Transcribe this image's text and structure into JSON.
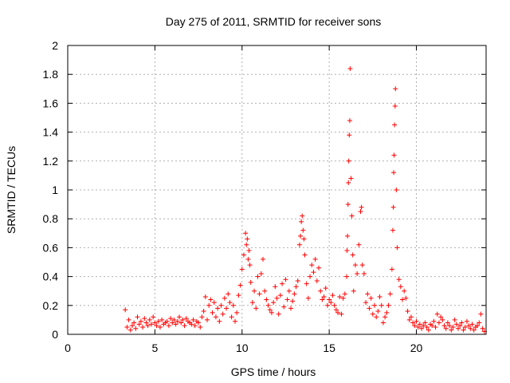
{
  "chart_data": {
    "type": "scatter",
    "title": "Day 275 of 2011, SRMTID for receiver sons",
    "xlabel": "GPS time / hours",
    "ylabel": "SRMTID / TECUs",
    "xlim": [
      0,
      24
    ],
    "ylim": [
      0,
      2
    ],
    "xticks": [
      "0",
      "5",
      "10",
      "15",
      "20"
    ],
    "yticks": [
      "0",
      "0.2",
      "0.4",
      "0.6",
      "0.8",
      "1",
      "1.2",
      "1.4",
      "1.6",
      "1.8",
      "2"
    ],
    "grid": true,
    "marker": "+",
    "color": "#ff0000",
    "series": [
      {
        "name": "SRMTID",
        "x": [
          3.3,
          3.4,
          3.5,
          3.6,
          3.7,
          3.8,
          3.9,
          4.0,
          4.1,
          4.2,
          4.3,
          4.4,
          4.5,
          4.6,
          4.7,
          4.8,
          4.9,
          5.0,
          5.1,
          5.2,
          5.3,
          5.4,
          5.5,
          5.6,
          5.7,
          5.8,
          5.9,
          6.0,
          6.1,
          6.2,
          6.3,
          6.4,
          6.5,
          6.6,
          6.7,
          6.8,
          6.9,
          7.0,
          7.1,
          7.2,
          7.3,
          7.4,
          7.5,
          7.6,
          7.7,
          7.8,
          7.9,
          8.0,
          8.1,
          8.2,
          8.3,
          8.4,
          8.5,
          8.6,
          8.7,
          8.8,
          8.9,
          9.0,
          9.1,
          9.2,
          9.3,
          9.4,
          9.5,
          9.6,
          9.7,
          9.8,
          9.9,
          10.0,
          10.1,
          10.2,
          10.25,
          10.3,
          10.35,
          10.4,
          10.45,
          10.5,
          10.6,
          10.7,
          10.8,
          10.9,
          11.0,
          11.1,
          11.2,
          11.3,
          11.4,
          11.5,
          11.6,
          11.7,
          11.8,
          11.9,
          12.0,
          12.1,
          12.2,
          12.3,
          12.4,
          12.5,
          12.6,
          12.7,
          12.8,
          12.9,
          13.0,
          13.1,
          13.2,
          13.3,
          13.35,
          13.4,
          13.45,
          13.5,
          13.55,
          13.6,
          13.7,
          13.8,
          13.9,
          14.0,
          14.1,
          14.2,
          14.3,
          14.4,
          14.5,
          14.6,
          14.7,
          14.8,
          14.9,
          15.0,
          15.1,
          15.2,
          15.3,
          15.4,
          15.5,
          15.6,
          15.7,
          15.8,
          15.9,
          16.0,
          16.02,
          16.05,
          16.08,
          16.1,
          16.12,
          16.15,
          16.18,
          16.2,
          16.25,
          16.3,
          16.35,
          16.4,
          16.5,
          16.6,
          16.7,
          16.8,
          16.85,
          16.9,
          17.0,
          17.1,
          17.2,
          17.3,
          17.4,
          17.5,
          17.6,
          17.7,
          17.8,
          17.9,
          18.0,
          18.1,
          18.2,
          18.3,
          18.4,
          18.5,
          18.6,
          18.65,
          18.68,
          18.7,
          18.72,
          18.75,
          18.78,
          18.8,
          18.85,
          18.9,
          19.0,
          19.1,
          19.2,
          19.3,
          19.4,
          19.5,
          19.6,
          19.7,
          19.8,
          19.9,
          20.0,
          20.1,
          20.2,
          20.3,
          20.4,
          20.5,
          20.6,
          20.7,
          20.8,
          20.9,
          21.0,
          21.1,
          21.2,
          21.3,
          21.4,
          21.5,
          21.6,
          21.7,
          21.8,
          21.9,
          22.0,
          22.1,
          22.2,
          22.3,
          22.4,
          22.5,
          22.6,
          22.7,
          22.8,
          22.9,
          23.0,
          23.1,
          23.2,
          23.3,
          23.4,
          23.5,
          23.6,
          23.7,
          23.8,
          23.9
        ],
        "y": [
          0.17,
          0.05,
          0.1,
          0.03,
          0.06,
          0.08,
          0.04,
          0.12,
          0.07,
          0.09,
          0.05,
          0.11,
          0.08,
          0.06,
          0.1,
          0.07,
          0.12,
          0.08,
          0.06,
          0.09,
          0.05,
          0.1,
          0.07,
          0.08,
          0.09,
          0.06,
          0.11,
          0.08,
          0.1,
          0.07,
          0.09,
          0.12,
          0.08,
          0.1,
          0.06,
          0.11,
          0.09,
          0.08,
          0.07,
          0.1,
          0.06,
          0.09,
          0.08,
          0.05,
          0.12,
          0.16,
          0.26,
          0.1,
          0.2,
          0.24,
          0.15,
          0.22,
          0.12,
          0.18,
          0.09,
          0.2,
          0.14,
          0.25,
          0.18,
          0.28,
          0.22,
          0.12,
          0.2,
          0.09,
          0.15,
          0.27,
          0.34,
          0.45,
          0.55,
          0.7,
          0.62,
          0.66,
          0.52,
          0.58,
          0.48,
          0.36,
          0.22,
          0.3,
          0.18,
          0.4,
          0.28,
          0.42,
          0.52,
          0.3,
          0.24,
          0.2,
          0.17,
          0.15,
          0.22,
          0.33,
          0.25,
          0.14,
          0.27,
          0.35,
          0.19,
          0.38,
          0.24,
          0.3,
          0.18,
          0.23,
          0.28,
          0.33,
          0.37,
          0.62,
          0.68,
          0.78,
          0.82,
          0.72,
          0.66,
          0.55,
          0.35,
          0.25,
          0.4,
          0.48,
          0.43,
          0.52,
          0.37,
          0.46,
          0.3,
          0.24,
          0.26,
          0.32,
          0.2,
          0.24,
          0.22,
          0.27,
          0.2,
          0.17,
          0.15,
          0.26,
          0.14,
          0.25,
          0.28,
          0.4,
          0.58,
          0.68,
          0.9,
          1.05,
          1.2,
          1.38,
          1.48,
          1.84,
          1.08,
          0.82,
          0.55,
          0.3,
          0.48,
          0.42,
          0.62,
          0.85,
          0.88,
          0.48,
          0.42,
          0.22,
          0.28,
          0.18,
          0.25,
          0.14,
          0.2,
          0.12,
          0.16,
          0.26,
          0.2,
          0.08,
          0.12,
          0.15,
          0.2,
          0.28,
          0.45,
          0.72,
          0.88,
          1.12,
          1.24,
          1.45,
          1.58,
          1.7,
          1.0,
          0.6,
          0.38,
          0.33,
          0.24,
          0.3,
          0.25,
          0.16,
          0.1,
          0.12,
          0.08,
          0.06,
          0.09,
          0.05,
          0.07,
          0.04,
          0.06,
          0.08,
          0.05,
          0.03,
          0.07,
          0.06,
          0.09,
          0.05,
          0.14,
          0.08,
          0.12,
          0.1,
          0.06,
          0.04,
          0.08,
          0.06,
          0.03,
          0.05,
          0.1,
          0.07,
          0.04,
          0.06,
          0.08,
          0.03,
          0.05,
          0.09,
          0.06,
          0.04,
          0.07,
          0.03,
          0.05,
          0.06,
          0.08,
          0.14,
          0.04,
          0.02
        ]
      }
    ]
  }
}
